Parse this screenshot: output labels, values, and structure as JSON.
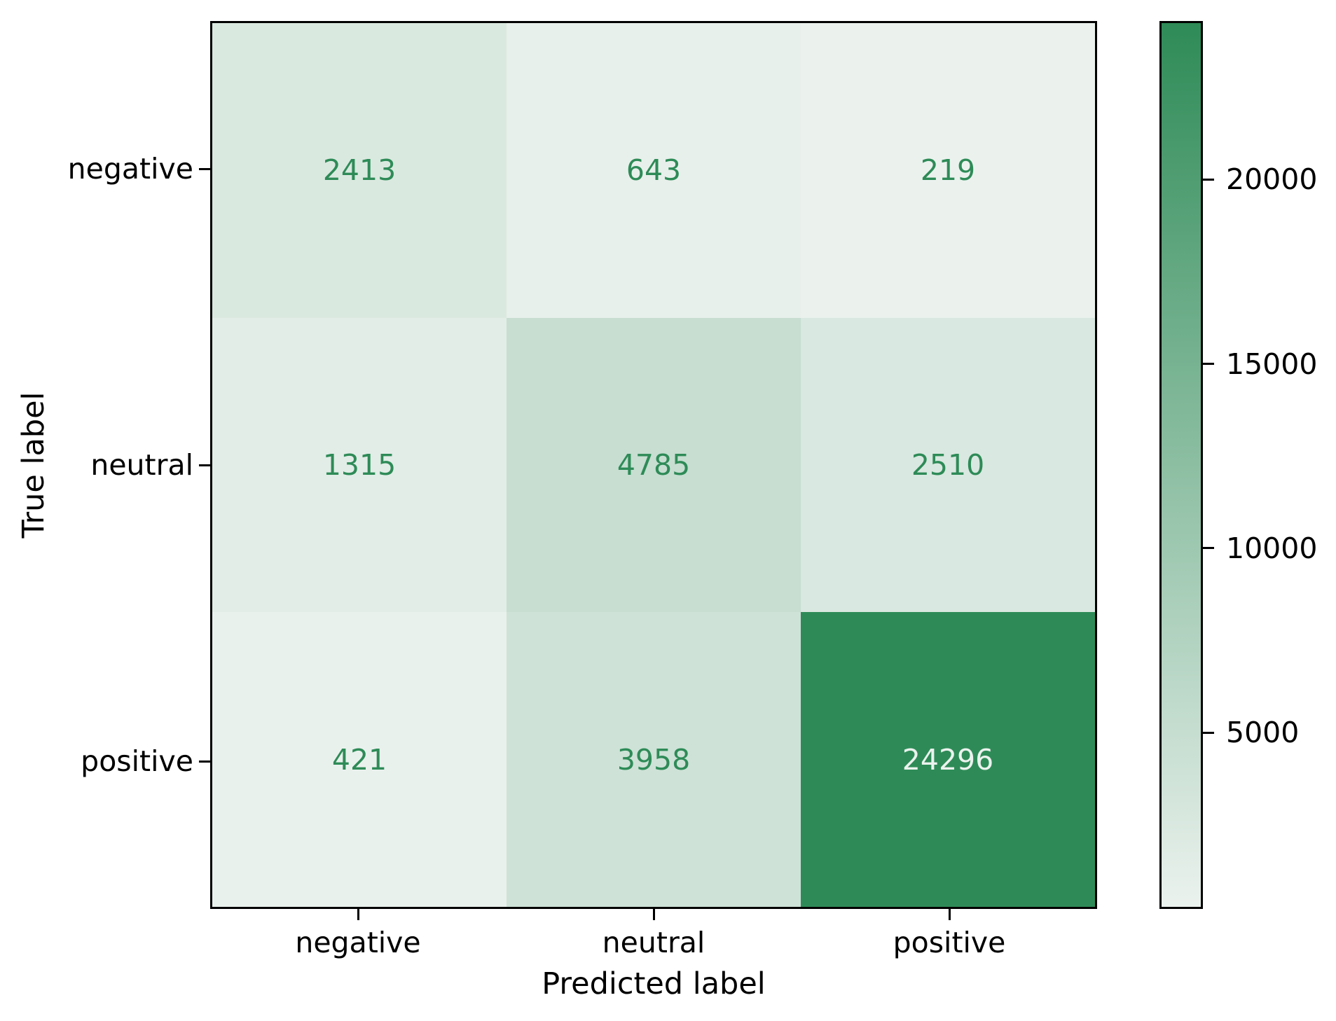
{
  "chart_data": {
    "type": "heatmap",
    "title": "",
    "xlabel": "Predicted label",
    "ylabel": "True label",
    "x_categories": [
      "negative",
      "neutral",
      "positive"
    ],
    "y_categories": [
      "negative",
      "neutral",
      "positive"
    ],
    "matrix": [
      [
        2413,
        643,
        219
      ],
      [
        1315,
        4785,
        2510
      ],
      [
        421,
        3958,
        24296
      ]
    ],
    "vmin": 219,
    "vmax": 24296,
    "colormap": {
      "low": "#ebf2ee",
      "high": "#2e8b57"
    },
    "text_colors": {
      "on_light": "#2e8b57",
      "on_dark": "#ebf2ee"
    },
    "colorbar": {
      "position": "right",
      "ticks": [
        20000,
        15000,
        10000,
        5000
      ]
    },
    "grid": false,
    "legend": "none"
  }
}
